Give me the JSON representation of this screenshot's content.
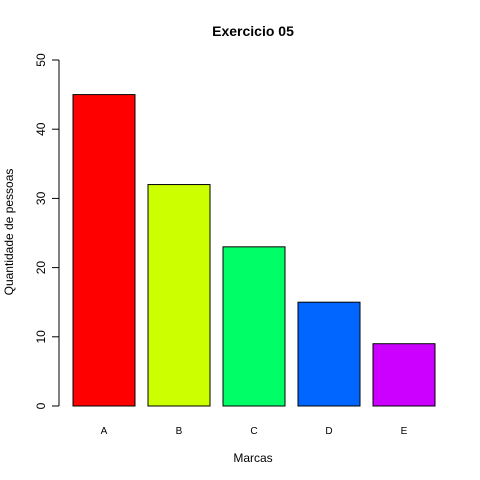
{
  "chart_data": {
    "type": "bar",
    "title": "Exercicio 05",
    "xlabel": "Marcas",
    "ylabel": "Quantidade de pessoas",
    "categories": [
      "A",
      "B",
      "C",
      "D",
      "E"
    ],
    "values": [
      45,
      32,
      23,
      15,
      9
    ],
    "colors": [
      "#FF0000",
      "#CCFF00",
      "#00FF66",
      "#0066FF",
      "#CC00FF"
    ],
    "ylim": [
      0,
      50
    ],
    "yticks": [
      "0",
      "10",
      "20",
      "30",
      "40",
      "50"
    ],
    "grid": false,
    "legend": "none"
  }
}
